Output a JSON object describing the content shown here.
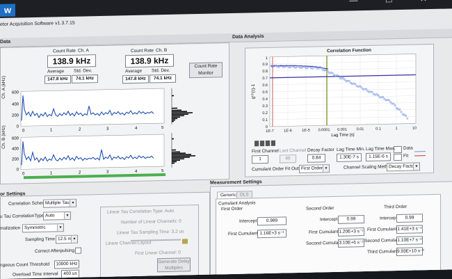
{
  "window": {
    "app_icon": "w",
    "title": "etor Acquisition Software v1.3.7.15",
    "controls": "—  ☐  ✕"
  },
  "sections": {
    "data": "Data",
    "data_analysis": "Data Analysis",
    "settings": "or Settings",
    "measurement": "Measurement Settings"
  },
  "count_rate": {
    "a": {
      "label": "Count Rate",
      "channel": "Ch. A",
      "value": "138.9  kHz",
      "average_label": "Average",
      "stddev_label": "Std. Dev.",
      "average": "147.8 kHz",
      "stddev": "74.1 kHz"
    },
    "b": {
      "label": "Count Rate",
      "channel": "Ch. B",
      "value": "138.9  kHz",
      "average_label": "Average",
      "stddev_label": "Std. Dev.",
      "average": "147.8 kHz",
      "stddev": "74.1 kHz"
    },
    "monitor_button": "Count Rate Monitor"
  },
  "plot_a": {
    "ylabel": "Ch. A (kHz)",
    "yticks": [
      "0",
      "200",
      "400",
      "600"
    ],
    "xticks": [
      "0",
      "1",
      "2",
      "3",
      "4",
      "5"
    ]
  },
  "plot_b": {
    "ylabel": "Ch. B (kHz)",
    "yticks": [
      "0",
      "200",
      "400",
      "600"
    ],
    "xticks": [
      "0",
      "1",
      "2",
      "3",
      "4",
      "5"
    ]
  },
  "correlation": {
    "title": "Correlation Function",
    "ylabel": "g⁽²⁾(τ)-1",
    "xlabel": "Lag Time (s)",
    "yticks": [
      "1",
      "0.9",
      "0.8",
      "0.7",
      "0.6",
      "0.5",
      "0.4",
      "0.3",
      "0.2",
      "0.1",
      "0"
    ],
    "xticks": [
      "1E-7",
      "1E-6",
      "1E-5",
      "0.0001",
      "0.001",
      "0.01",
      "0.1",
      "1",
      "10"
    ],
    "legend": {
      "data": "Data",
      "fit": "Fit"
    },
    "first_channel_label": "First Channel",
    "first_channel": "1",
    "last_channel_label": "Last Channel",
    "last_channel": "40",
    "decay_factor_label": "Decay Factor",
    "decay_factor": "0.84",
    "lag_min_label": "Lag Time Min.",
    "lag_min": "1.30E-7 s",
    "lag_max_label": "Lag Time Max.",
    "lag_max": "1.15E-6 s",
    "cumulant_label": "Cumulant Order Fit Output",
    "cumulant_value": "First Order",
    "scaling_label": "Channel Scaling Method",
    "scaling_value": "Decay Factor"
  },
  "settings": {
    "scheme_label": "Correlation Scheme",
    "scheme_value": "Multiple Tau",
    "type_label": "u Tau CorrelationType",
    "type_value": "Auto",
    "norm_label": "malization",
    "norm_value": "Symmetric",
    "sampling_label": "Sampling Time",
    "sampling_value": "12.5 ns",
    "afterpulse_label": "Correct Afterpulsing",
    "threshold_label": "ngeous Count Threshold",
    "threshold_value": "10000 kHz",
    "interval_label": "Overload Time Interval",
    "interval_value": "400 us",
    "linear_type_label": "Linear Tau Correlation Type: Auto",
    "linear_channels_label": "Number of Linear Channels: 0",
    "linear_sampling_label": "Linear Tau Sampling Time: 3.2 us",
    "linear_layout_label": "Linear Channel Layout",
    "first_linear_label": "First Linear Channel: 0",
    "generate_button": "Generate Delay Multiples"
  },
  "measurement": {
    "tabs": [
      "Generic",
      "DLS"
    ],
    "cumulant_title": "Cumulant Analysis",
    "first": {
      "title": "First Order",
      "intercept_label": "Intercept",
      "intercept": "0.989",
      "cumulant_label": "First Cumulant",
      "cumulant": "1.16E+3 s⁻¹"
    },
    "second": {
      "title": "Second Order",
      "intercept_label": "Intercept",
      "intercept": "0.99",
      "first_label": "First Cumulant",
      "first": "1.20E+3 s⁻¹",
      "second_label": "Second Cumulant",
      "second": "3.10E+6 s⁻²"
    },
    "third": {
      "title": "Third Order",
      "intercept_label": "Intercept",
      "intercept": "0.99",
      "first_label": "First Cumulant",
      "first": "1.41E+3 s⁻¹",
      "second_label": "Second Cumulant",
      "second": "1.10E+7 s⁻²",
      "third_label": "Third Cumulant",
      "third": "9.93E+10 s⁻³"
    }
  },
  "colors": {
    "trace": "#1f4fb0",
    "fit": "#3a2f9e",
    "data_points": "#6f8fe0",
    "progress": "#4caf50"
  }
}
